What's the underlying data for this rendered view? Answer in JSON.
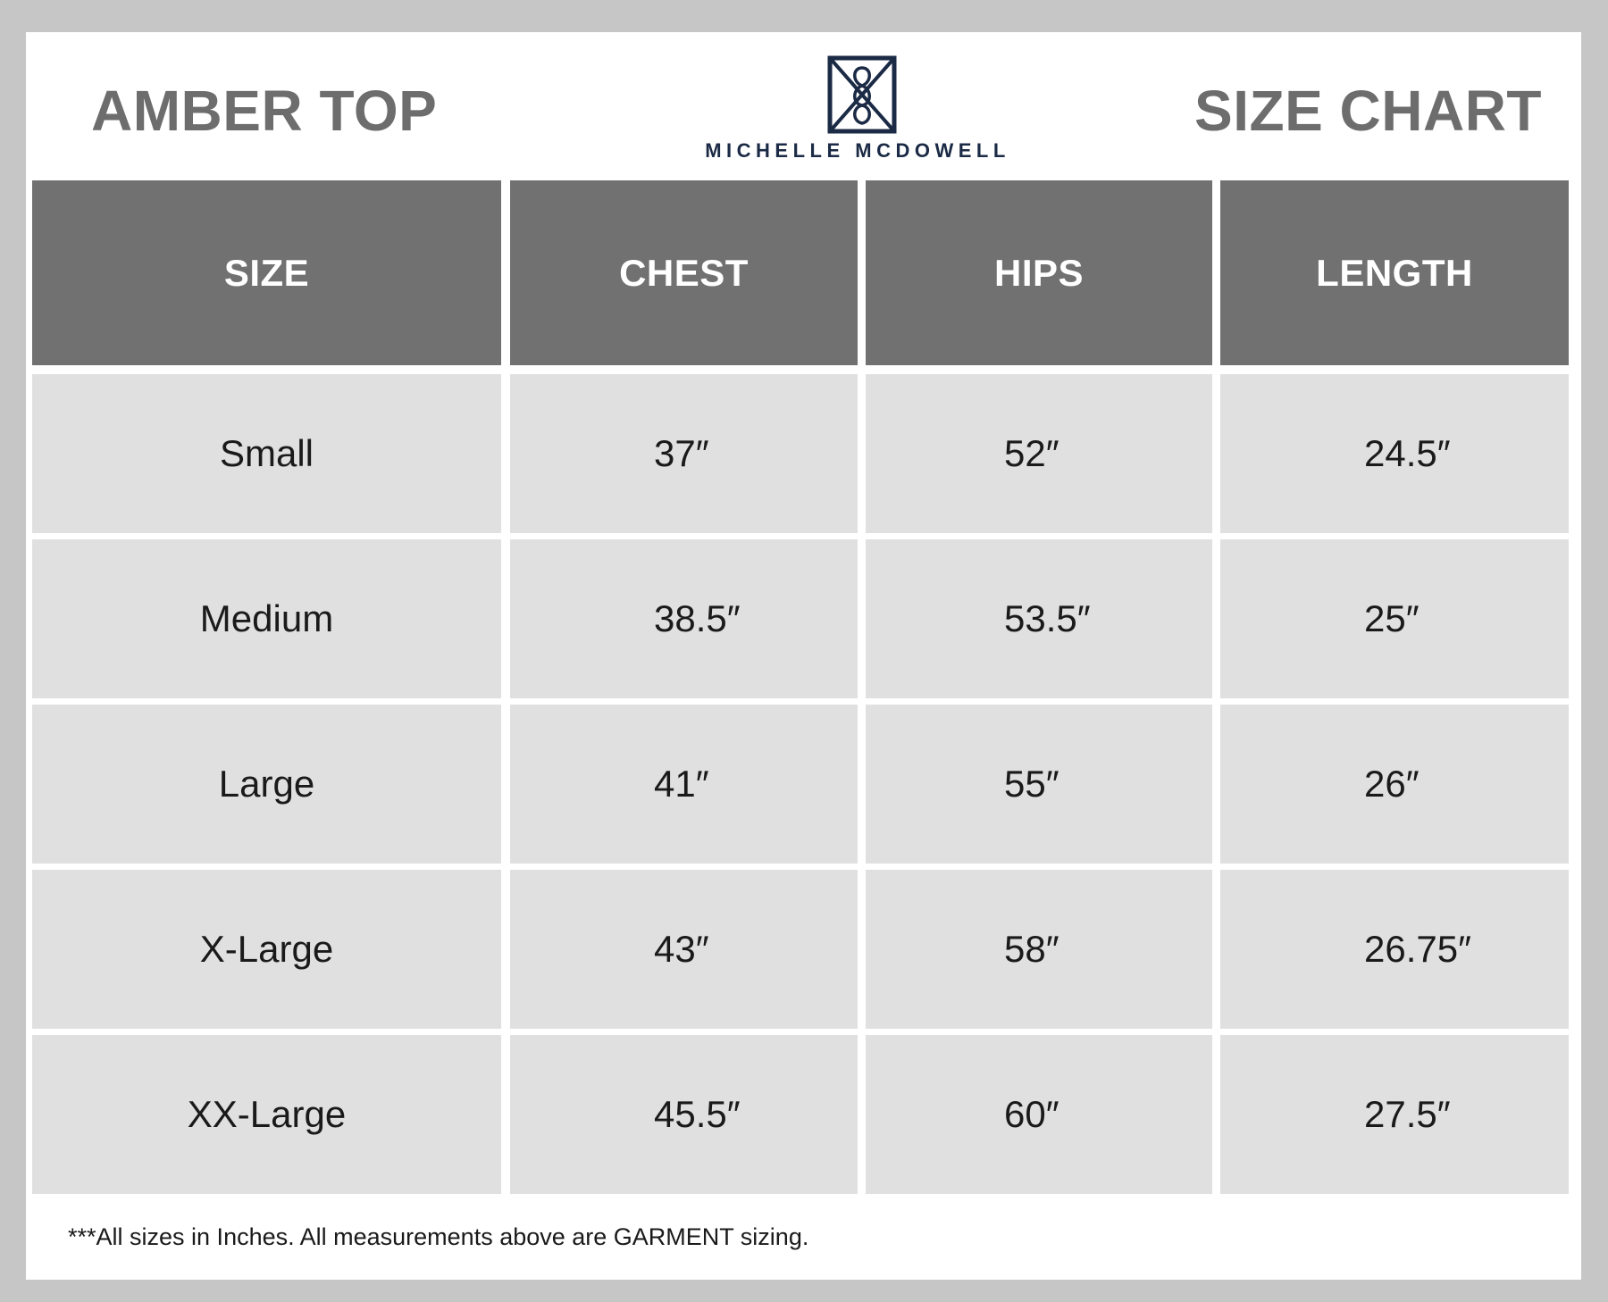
{
  "header": {
    "product_title": "AMBER TOP",
    "chart_title": "SIZE CHART",
    "brand_name": "MICHELLE MCDOWELL"
  },
  "colors": {
    "background": "#c6c6c6",
    "header_cell": "#717171",
    "body_cell": "#e0e0e0",
    "title_text": "#6d6d6d",
    "brand_navy": "#1b2a45"
  },
  "table": {
    "columns": [
      "SIZE",
      "CHEST",
      "HIPS",
      "LENGTH"
    ],
    "rows": [
      [
        "Small",
        "37″",
        "52″",
        "24.5″"
      ],
      [
        "Medium",
        "38.5″",
        "53.5″",
        "25″"
      ],
      [
        "Large",
        "41″",
        "55″",
        "26″"
      ],
      [
        "X-Large",
        "43″",
        "58″",
        "26.75″"
      ],
      [
        "XX-Large",
        "45.5″",
        "60″",
        "27.5″"
      ]
    ]
  },
  "footnote": "***All sizes in Inches. All measurements above are GARMENT sizing."
}
